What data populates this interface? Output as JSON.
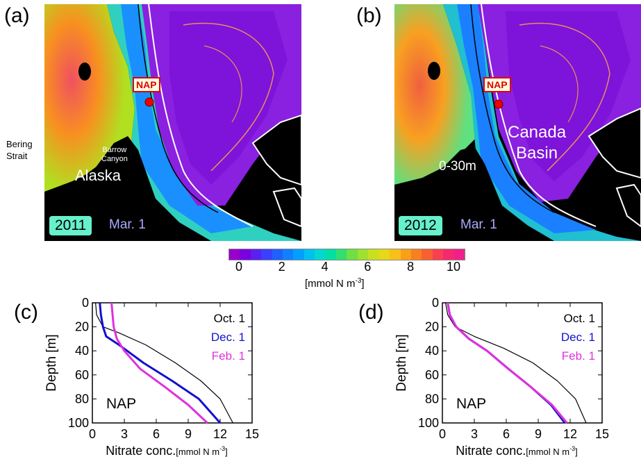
{
  "panels": {
    "a": {
      "label": "(a)",
      "year": "2011",
      "date": "Mar. 1",
      "nap": "NAP",
      "bering": "Bering\nStrait",
      "barrow": "Barrow\nCanyon",
      "alaska": "Alaska"
    },
    "b": {
      "label": "(b)",
      "year": "2012",
      "date": "Mar. 1",
      "nap": "NAP",
      "basin": "Canada\nBasin",
      "depth": "0-30m"
    }
  },
  "colorbar": {
    "ticks": [
      "0",
      "2",
      "4",
      "6",
      "8",
      "10"
    ],
    "unit_main": "[mmol N m",
    "unit_sup": "-3",
    "unit_end": "]",
    "colors": [
      "#9900cc",
      "#7a00e0",
      "#5a20f0",
      "#3a40ff",
      "#2060ff",
      "#1080ff",
      "#00a0ff",
      "#00c0f0",
      "#00d8d0",
      "#00e0a0",
      "#30e070",
      "#70e040",
      "#a0e030",
      "#c8e020",
      "#e8d818",
      "#f8c018",
      "#f8a018",
      "#f88020",
      "#f86030",
      "#f84050",
      "#f82870",
      "#f0208a"
    ]
  },
  "chart_data": [
    {
      "type": "line",
      "panel_label": "(c)",
      "annotation": "NAP",
      "xlabel": "Nitrate conc.",
      "xlabel_unit": "[mmol N m",
      "xlabel_sup": "-3",
      "xlabel_end": "]",
      "ylabel": "Depth [m]",
      "xlim": [
        0,
        15
      ],
      "ylim": [
        100,
        0
      ],
      "xticks": [
        "0",
        "3",
        "6",
        "9",
        "12",
        "15"
      ],
      "yticks": [
        "0",
        "20",
        "40",
        "60",
        "80",
        "100"
      ],
      "legend_position": "top-right",
      "series": [
        {
          "name": "Oct. 1",
          "color": "#000000",
          "width": 1.2,
          "x": [
            0.3,
            0.4,
            1.0,
            2.5,
            5.0,
            7.8,
            10.2,
            12.0,
            13.2
          ],
          "y": [
            0,
            10,
            20,
            25,
            35,
            50,
            65,
            80,
            100
          ]
        },
        {
          "name": "Dec. 1",
          "color": "#1010d0",
          "width": 3,
          "x": [
            0.7,
            0.8,
            1.0,
            1.3,
            2.5,
            4.8,
            7.5,
            10.0,
            12.0
          ],
          "y": [
            0,
            10,
            20,
            28,
            35,
            50,
            65,
            80,
            100
          ]
        },
        {
          "name": "Feb. 1",
          "color": "#e030e0",
          "width": 3,
          "x": [
            1.8,
            1.9,
            2.0,
            2.3,
            3.0,
            4.5,
            6.8,
            9.0,
            10.8
          ],
          "y": [
            0,
            10,
            20,
            30,
            40,
            55,
            70,
            85,
            100
          ]
        }
      ]
    },
    {
      "type": "line",
      "panel_label": "(d)",
      "annotation": "NAP",
      "xlabel": "Nitrate conc.",
      "xlabel_unit": "[mmol N m",
      "xlabel_sup": "-3",
      "xlabel_end": "]",
      "ylabel": "Depth [m]",
      "xlim": [
        0,
        15
      ],
      "ylim": [
        100,
        0
      ],
      "xticks": [
        "0",
        "3",
        "6",
        "9",
        "12",
        "15"
      ],
      "yticks": [
        "0",
        "20",
        "40",
        "60",
        "80",
        "100"
      ],
      "legend_position": "top-right",
      "series": [
        {
          "name": "Oct. 1",
          "color": "#000000",
          "width": 1.2,
          "x": [
            0.3,
            0.5,
            1.2,
            3.0,
            5.8,
            8.5,
            10.8,
            12.5,
            13.5
          ],
          "y": [
            0,
            10,
            20,
            28,
            38,
            50,
            65,
            80,
            100
          ]
        },
        {
          "name": "Dec. 1",
          "color": "#1010d0",
          "width": 3,
          "x": [
            0.5,
            0.7,
            1.3,
            2.5,
            4.2,
            6.2,
            8.3,
            10.2,
            11.5
          ],
          "y": [
            0,
            10,
            20,
            30,
            40,
            55,
            70,
            85,
            100
          ]
        },
        {
          "name": "Feb. 1",
          "color": "#e030e0",
          "width": 3,
          "x": [
            0.5,
            0.7,
            1.3,
            2.5,
            4.2,
            6.2,
            8.3,
            10.3,
            11.7
          ],
          "y": [
            0,
            10,
            20,
            30,
            40,
            55,
            70,
            85,
            100
          ]
        }
      ]
    }
  ]
}
